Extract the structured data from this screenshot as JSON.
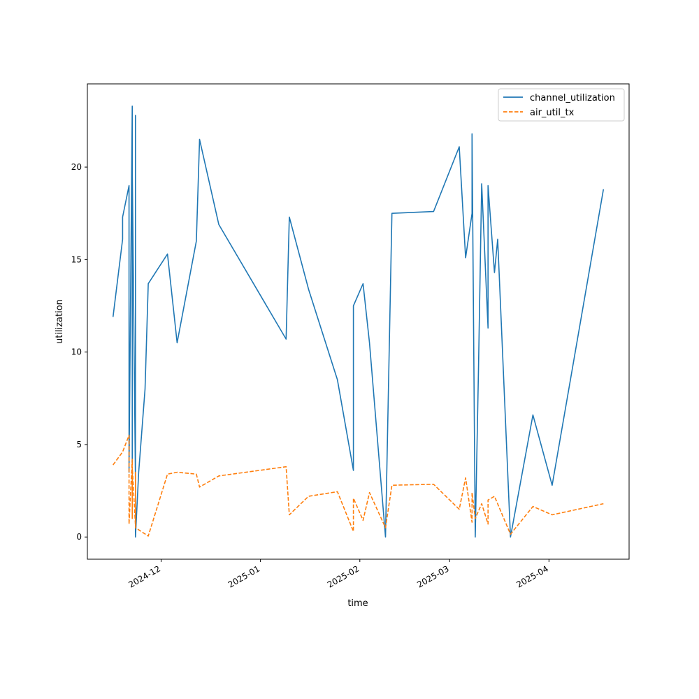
{
  "chart_data": {
    "type": "line",
    "title": "",
    "xlabel": "time",
    "ylabel": "utilization",
    "xlim": [
      "2024-11-08",
      "2025-04-26"
    ],
    "ylim": [
      -1.2,
      24.5
    ],
    "grid": false,
    "legend_position": "top-right",
    "y_ticks": [
      0,
      5,
      10,
      15,
      20
    ],
    "x_ticks": [
      "2024-12",
      "2025-01",
      "2025-02",
      "2025-03",
      "2025-04"
    ],
    "x_tick_dates": [
      "2024-12-01",
      "2025-01-01",
      "2025-02-01",
      "2025-03-01",
      "2025-04-01"
    ],
    "series": [
      {
        "name": "channel_utilization",
        "color": "#1f77b4",
        "style": "solid",
        "points": [
          [
            "2024-11-16",
            11.9
          ],
          [
            "2024-11-19",
            16.1
          ],
          [
            "2024-11-19",
            17.3
          ],
          [
            "2024-11-21",
            19.0
          ],
          [
            "2024-11-21",
            3.5
          ],
          [
            "2024-11-22",
            23.3
          ],
          [
            "2024-11-22",
            4.0
          ],
          [
            "2024-11-22",
            19.9
          ],
          [
            "2024-11-23",
            3.0
          ],
          [
            "2024-11-23",
            0.0
          ],
          [
            "2024-11-23",
            22.8
          ],
          [
            "2024-11-23",
            0.0
          ],
          [
            "2024-11-24",
            3.5
          ],
          [
            "2024-11-26",
            8.0
          ],
          [
            "2024-11-27",
            13.7
          ],
          [
            "2024-12-03",
            15.3
          ],
          [
            "2024-12-06",
            10.5
          ],
          [
            "2024-12-12",
            16.0
          ],
          [
            "2024-12-13",
            21.5
          ],
          [
            "2024-12-19",
            16.9
          ],
          [
            "2025-01-09",
            10.7
          ],
          [
            "2025-01-10",
            17.3
          ],
          [
            "2025-01-16",
            13.4
          ],
          [
            "2025-01-25",
            8.5
          ],
          [
            "2025-01-30",
            3.6
          ],
          [
            "2025-01-30",
            12.5
          ],
          [
            "2025-02-02",
            13.7
          ],
          [
            "2025-02-04",
            10.5
          ],
          [
            "2025-02-09",
            0.0
          ],
          [
            "2025-02-11",
            17.5
          ],
          [
            "2025-02-24",
            17.6
          ],
          [
            "2025-03-04",
            21.1
          ],
          [
            "2025-03-06",
            15.1
          ],
          [
            "2025-03-08",
            17.5
          ],
          [
            "2025-03-08",
            21.8
          ],
          [
            "2025-03-09",
            0.0
          ],
          [
            "2025-03-10",
            9.0
          ],
          [
            "2025-03-11",
            19.1
          ],
          [
            "2025-03-13",
            11.3
          ],
          [
            "2025-03-13",
            19.0
          ],
          [
            "2025-03-15",
            14.3
          ],
          [
            "2025-03-16",
            16.1
          ],
          [
            "2025-03-20",
            0.0
          ],
          [
            "2025-03-27",
            6.6
          ],
          [
            "2025-04-02",
            2.8
          ],
          [
            "2025-04-18",
            18.8
          ]
        ]
      },
      {
        "name": "air_util_tx",
        "color": "#ff7f0e",
        "style": "dashed",
        "points": [
          [
            "2024-11-16",
            3.9
          ],
          [
            "2024-11-19",
            4.6
          ],
          [
            "2024-11-21",
            5.5
          ],
          [
            "2024-11-21",
            0.7
          ],
          [
            "2024-11-22",
            4.2
          ],
          [
            "2024-11-22",
            1.0
          ],
          [
            "2024-11-22",
            3.8
          ],
          [
            "2024-11-23",
            0.6
          ],
          [
            "2024-11-23",
            3.5
          ],
          [
            "2024-11-23",
            0.5
          ],
          [
            "2024-11-27",
            0.05
          ],
          [
            "2024-12-03",
            3.4
          ],
          [
            "2024-12-06",
            3.5
          ],
          [
            "2024-12-12",
            3.4
          ],
          [
            "2024-12-13",
            2.7
          ],
          [
            "2024-12-19",
            3.3
          ],
          [
            "2025-01-09",
            3.8
          ],
          [
            "2025-01-10",
            1.2
          ],
          [
            "2025-01-16",
            2.2
          ],
          [
            "2025-01-25",
            2.45
          ],
          [
            "2025-01-30",
            0.3
          ],
          [
            "2025-01-30",
            2.1
          ],
          [
            "2025-02-02",
            0.9
          ],
          [
            "2025-02-04",
            2.4
          ],
          [
            "2025-02-09",
            0.5
          ],
          [
            "2025-02-11",
            2.8
          ],
          [
            "2025-02-24",
            2.85
          ],
          [
            "2025-03-04",
            1.5
          ],
          [
            "2025-03-06",
            3.2
          ],
          [
            "2025-03-08",
            0.8
          ],
          [
            "2025-03-08",
            2.4
          ],
          [
            "2025-03-09",
            1.0
          ],
          [
            "2025-03-11",
            1.8
          ],
          [
            "2025-03-13",
            0.7
          ],
          [
            "2025-03-13",
            2.0
          ],
          [
            "2025-03-15",
            2.2
          ],
          [
            "2025-03-20",
            0.15
          ],
          [
            "2025-03-27",
            1.65
          ],
          [
            "2025-04-02",
            1.2
          ],
          [
            "2025-04-18",
            1.8
          ]
        ]
      }
    ]
  }
}
